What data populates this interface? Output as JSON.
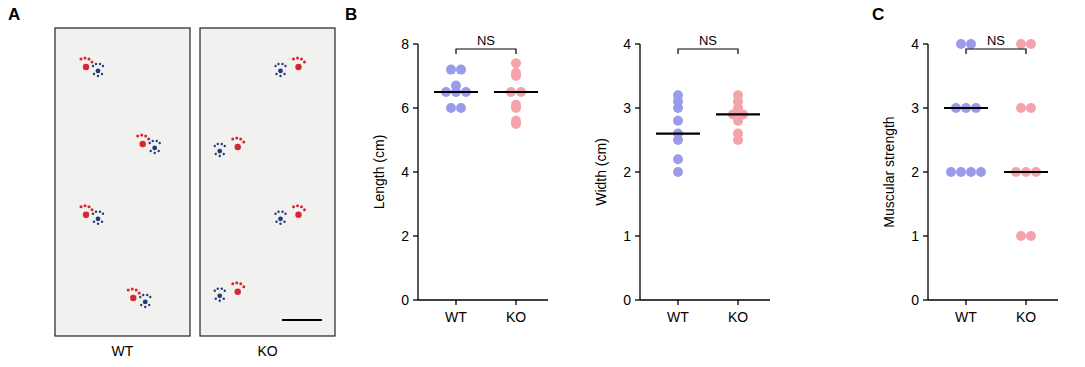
{
  "footprints": {
    "panel_label": "A",
    "images": [
      "WT",
      "KO"
    ]
  },
  "chart_data": [
    {
      "type": "dot",
      "panel_label": "B",
      "y_label": "Length (cm)",
      "categories": [
        "WT",
        "KO"
      ],
      "values": [
        [
          7.2,
          7.2,
          6.7,
          6.5,
          6.5,
          6.5,
          6.0,
          6.0
        ],
        [
          7.4,
          7.1,
          7.0,
          6.5,
          6.5,
          6.1,
          6.0,
          5.6,
          5.5
        ]
      ],
      "medians": [
        6.5,
        6.5
      ],
      "colors": [
        "#9b9bee",
        "#f4a3aa"
      ],
      "ylim": [
        0,
        8
      ],
      "yticks": [
        0,
        2,
        4,
        6,
        8
      ],
      "annotations": [
        {
          "text": "NS"
        }
      ]
    },
    {
      "type": "dot",
      "y_label": "Width (cm)",
      "categories": [
        "WT",
        "KO"
      ],
      "values": [
        [
          3.2,
          3.1,
          3.0,
          2.8,
          2.6,
          2.5,
          2.2,
          2.0
        ],
        [
          3.2,
          3.1,
          3.0,
          2.9,
          2.9,
          2.8,
          2.6,
          2.5
        ]
      ],
      "medians": [
        2.6,
        2.9
      ],
      "colors": [
        "#9b9bee",
        "#f4a3aa"
      ],
      "ylim": [
        0,
        4
      ],
      "yticks": [
        0,
        1,
        2,
        3,
        4
      ],
      "annotations": [
        {
          "text": "NS"
        }
      ]
    },
    {
      "type": "dot",
      "panel_label": "C",
      "y_label": "Muscular strength",
      "categories": [
        "WT",
        "KO"
      ],
      "values": [
        [
          4,
          4,
          3,
          3,
          3,
          2,
          2,
          2,
          2
        ],
        [
          4,
          4,
          3,
          3,
          2,
          2,
          2,
          1,
          1
        ]
      ],
      "medians": [
        3,
        2
      ],
      "colors": [
        "#9b9bee",
        "#f4a3aa"
      ],
      "ylim": [
        0,
        4
      ],
      "yticks": [
        0,
        1,
        2,
        3,
        4
      ],
      "annotations": [
        {
          "text": "NS"
        }
      ]
    }
  ]
}
